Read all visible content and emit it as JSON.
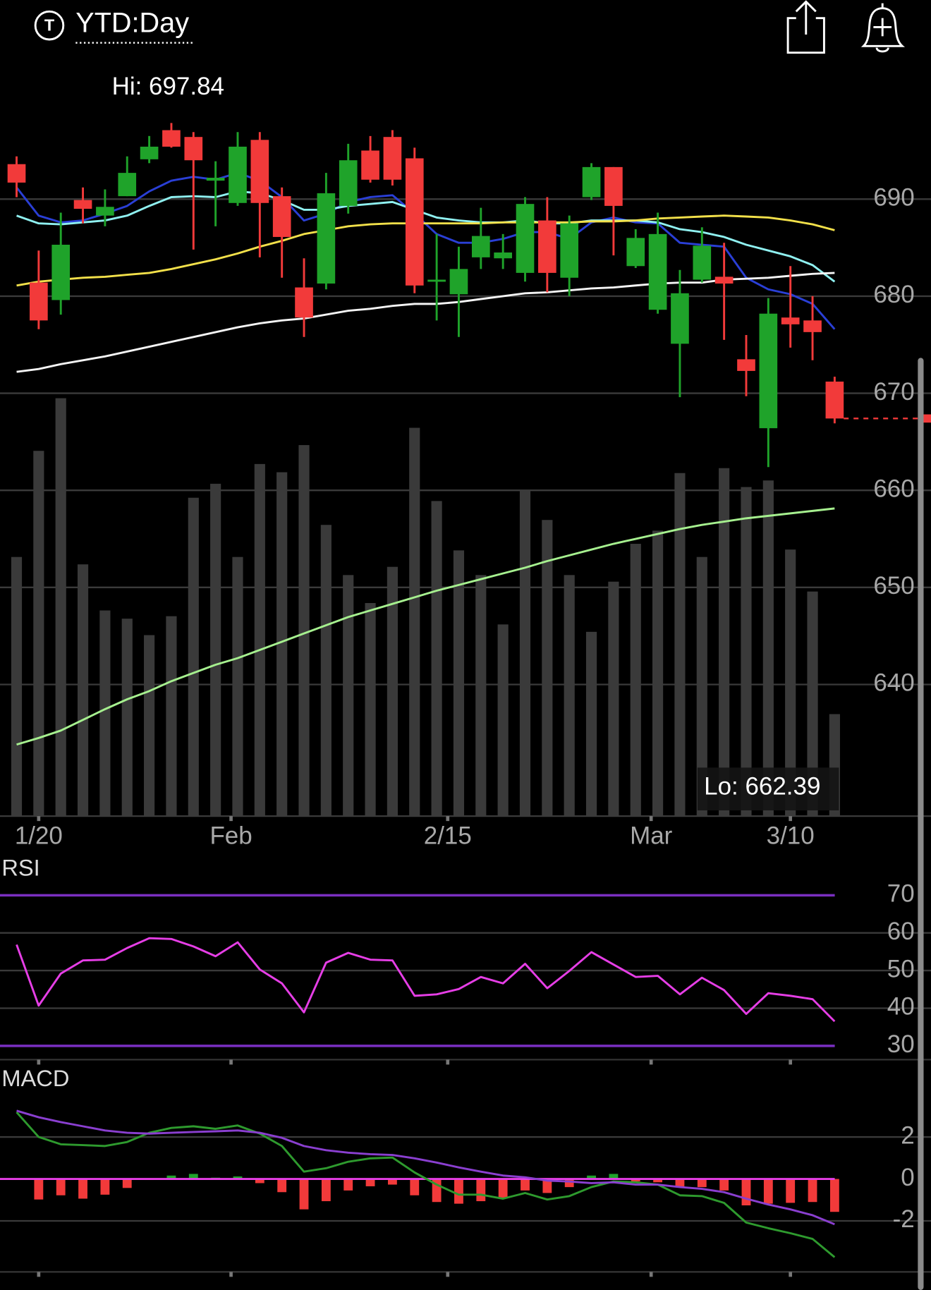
{
  "header": {
    "title": "YTD:Day"
  },
  "chart_data": [
    {
      "type": "candlestick",
      "xlim": [
        -0.75,
        37.75
      ],
      "xticks": [
        {
          "value": 1,
          "label": "1/20"
        },
        {
          "value": 9.7,
          "label": "Feb"
        },
        {
          "value": 19.5,
          "label": "2/15"
        },
        {
          "value": 28.7,
          "label": "Mar"
        },
        {
          "value": 35,
          "label": "3/10"
        }
      ],
      "ylim": [
        627,
        703
      ],
      "yticks": [
        640,
        650,
        660,
        670,
        680,
        690
      ],
      "grid": true,
      "up_color": "#1fa32a",
      "down_color": "#f23a3a",
      "open": [
        693.6,
        681.4,
        679.6,
        689.9,
        688.3,
        690.3,
        694.1,
        697.1,
        696.4,
        691.9,
        689.6,
        696.1,
        690.3,
        680.9,
        681.3,
        689.3,
        695.0,
        696.4,
        694.2,
        681.5,
        680.2,
        684.0,
        683.9,
        682.4,
        687.8,
        681.9,
        690.2,
        693.3,
        683.1,
        678.6,
        675.1,
        681.7,
        682.0,
        673.5,
        666.4,
        677.8,
        677.5,
        671.2
      ],
      "high": [
        694.4,
        684.7,
        688.6,
        691.2,
        691.0,
        694.4,
        696.5,
        697.84,
        696.9,
        693.9,
        696.9,
        696.9,
        691.2,
        683.9,
        692.7,
        695.7,
        696.5,
        697.1,
        695.3,
        686.4,
        685.1,
        689.1,
        686.4,
        690.2,
        690.2,
        688.3,
        693.7,
        693.3,
        686.9,
        688.6,
        682.7,
        687.1,
        685.5,
        676.0,
        679.8,
        683.1,
        680.0,
        671.7
      ],
      "low": [
        690.2,
        676.6,
        678.1,
        687.5,
        687.2,
        690.3,
        693.7,
        695.3,
        684.8,
        687.2,
        689.3,
        684.0,
        681.9,
        675.8,
        680.7,
        688.5,
        691.7,
        691.4,
        680.3,
        677.5,
        675.8,
        682.8,
        682.8,
        681.5,
        680.4,
        680.0,
        689.9,
        684.2,
        682.9,
        678.2,
        669.6,
        681.4,
        675.5,
        669.7,
        662.39,
        674.7,
        673.4,
        666.9
      ],
      "close": [
        691.7,
        677.5,
        685.3,
        689.0,
        689.2,
        692.7,
        695.4,
        695.4,
        694.0,
        692.2,
        695.4,
        689.6,
        686.1,
        677.8,
        690.6,
        694.0,
        692.0,
        692.0,
        681.1,
        681.7,
        682.8,
        686.2,
        684.5,
        689.5,
        682.4,
        687.5,
        693.3,
        689.3,
        686.0,
        686.4,
        680.3,
        685.2,
        681.3,
        672.3,
        678.2,
        677.1,
        676.3,
        667.4
      ],
      "series": [
        {
          "color": "#2a3fd6",
          "values": [
            691.2,
            688.3,
            687.6,
            687.8,
            688.5,
            689.3,
            690.8,
            691.9,
            692.3,
            692.0,
            692.7,
            691.9,
            690.2,
            687.8,
            688.5,
            689.7,
            690.2,
            690.4,
            688.5,
            686.4,
            685.5,
            685.5,
            685.9,
            686.6,
            686.6,
            685.9,
            687.6,
            688.1,
            687.6,
            687.5,
            685.5,
            685.3,
            685.1,
            681.9,
            680.7,
            680.2,
            679.2,
            676.6
          ]
        },
        {
          "color": "#8ff0f0",
          "values": [
            688.3,
            687.5,
            687.4,
            687.6,
            687.8,
            688.3,
            689.3,
            690.2,
            690.3,
            690.2,
            690.8,
            690.6,
            689.9,
            688.9,
            688.9,
            689.3,
            689.5,
            689.7,
            688.9,
            688.1,
            687.8,
            687.6,
            687.6,
            687.8,
            687.5,
            687.5,
            687.8,
            687.8,
            687.8,
            687.6,
            686.9,
            686.6,
            686.1,
            685.3,
            684.7,
            684.1,
            683.2,
            681.5
          ]
        },
        {
          "color": "#f2e04a",
          "values": [
            681.1,
            681.5,
            681.7,
            681.9,
            682.0,
            682.2,
            682.4,
            682.8,
            683.3,
            683.8,
            684.4,
            685.1,
            685.7,
            686.4,
            686.8,
            687.2,
            687.4,
            687.5,
            687.5,
            687.5,
            687.5,
            687.5,
            687.6,
            687.6,
            687.6,
            687.6,
            687.7,
            687.7,
            687.8,
            688.0,
            688.1,
            688.2,
            688.3,
            688.2,
            688.1,
            687.8,
            687.4,
            686.8
          ]
        },
        {
          "color": "#f4f4f4",
          "values": [
            672.2,
            672.5,
            673.0,
            673.4,
            673.8,
            674.3,
            674.8,
            675.3,
            675.8,
            676.3,
            676.8,
            677.2,
            677.5,
            677.7,
            678.1,
            678.5,
            678.7,
            679.0,
            679.2,
            679.2,
            679.4,
            679.7,
            680.0,
            680.3,
            680.4,
            680.6,
            680.8,
            680.9,
            681.1,
            681.3,
            681.4,
            681.4,
            681.7,
            681.8,
            681.9,
            682.1,
            682.3,
            682.4
          ]
        }
      ],
      "volume": {
        "color": "#3a3a3a",
        "values": [
          315,
          444,
          508,
          306,
          250,
          240,
          220,
          243,
          387,
          404,
          315,
          428,
          418,
          451,
          354,
          293,
          259,
          303,
          472,
          383,
          323,
          293,
          233,
          396,
          360,
          293,
          224,
          285,
          331,
          347,
          417,
          315,
          423,
          400,
          408,
          324,
          273,
          124
        ]
      },
      "volume_ma": {
        "color": "#a6f08f",
        "values": [
          87,
          95,
          104,
          117,
          130,
          142,
          152,
          164,
          174,
          184,
          192,
          202,
          212,
          222,
          232,
          242,
          250,
          258,
          266,
          274,
          281,
          288,
          295,
          302,
          310,
          317,
          324,
          331,
          337,
          343,
          349,
          354,
          358,
          362,
          365,
          368,
          371,
          374
        ]
      },
      "hi_label": "Hi: 697.84",
      "lo_label": "Lo: 662.39",
      "last_price_color": "#f23a3a"
    },
    {
      "type": "line",
      "title": "RSI",
      "ylim": [
        27,
        79
      ],
      "yticks": [
        30,
        40,
        50,
        60,
        70
      ],
      "levels": [
        70,
        30
      ],
      "level_color": "#7a2fc0",
      "series": [
        {
          "color": "#e63ee6",
          "values": [
            56.9,
            40.7,
            49.2,
            52.7,
            52.9,
            56.0,
            58.6,
            58.4,
            56.4,
            53.8,
            57.5,
            50.3,
            46.6,
            38.9,
            52.1,
            54.7,
            52.9,
            52.7,
            43.3,
            43.7,
            45.1,
            48.3,
            46.6,
            51.8,
            45.3,
            49.9,
            54.9,
            51.6,
            48.3,
            48.6,
            43.7,
            48.1,
            44.8,
            38.5,
            44.0,
            43.3,
            42.4,
            36.5
          ]
        }
      ]
    },
    {
      "type": "macd",
      "title": "MACD",
      "ylim": [
        -5.2,
        5.2
      ],
      "yticks": [
        2,
        0,
        -2
      ],
      "zero_color": "#e63ee6",
      "series": [
        {
          "color": "#2e9a2e",
          "values": [
            3.18,
            2.0,
            1.65,
            1.61,
            1.57,
            1.76,
            2.2,
            2.43,
            2.51,
            2.39,
            2.55,
            2.16,
            1.57,
            0.35,
            0.51,
            0.82,
            0.98,
            1.02,
            0.31,
            -0.27,
            -0.75,
            -0.75,
            -0.94,
            -0.67,
            -0.98,
            -0.82,
            -0.39,
            -0.12,
            -0.16,
            -0.27,
            -0.78,
            -0.82,
            -1.14,
            -2.08,
            -2.35,
            -2.59,
            -2.86,
            -3.73
          ]
        },
        {
          "color": "#8a3fd0",
          "values": [
            3.25,
            2.94,
            2.71,
            2.51,
            2.31,
            2.2,
            2.16,
            2.2,
            2.24,
            2.27,
            2.31,
            2.2,
            1.96,
            1.57,
            1.37,
            1.25,
            1.18,
            1.14,
            0.98,
            0.78,
            0.55,
            0.35,
            0.16,
            0.08,
            -0.08,
            -0.12,
            -0.2,
            -0.16,
            -0.27,
            -0.27,
            -0.39,
            -0.47,
            -0.63,
            -0.94,
            -1.22,
            -1.45,
            -1.73,
            -2.16
          ]
        }
      ],
      "histogram": {
        "up_color": "#1fa32a",
        "down_color": "#f23a3a",
        "values": [
          -0.05,
          -0.98,
          -0.78,
          -0.94,
          -0.75,
          -0.43,
          -0.05,
          0.16,
          0.24,
          0.06,
          0.12,
          -0.2,
          -0.63,
          -1.45,
          -1.06,
          -0.55,
          -0.35,
          -0.27,
          -0.78,
          -1.1,
          -1.18,
          -1.06,
          -0.94,
          -0.55,
          -0.67,
          -0.39,
          0.16,
          0.24,
          -0.12,
          -0.16,
          -0.39,
          -0.39,
          -0.55,
          -1.26,
          -1.18,
          -1.14,
          -1.1,
          -1.57
        ]
      }
    }
  ]
}
